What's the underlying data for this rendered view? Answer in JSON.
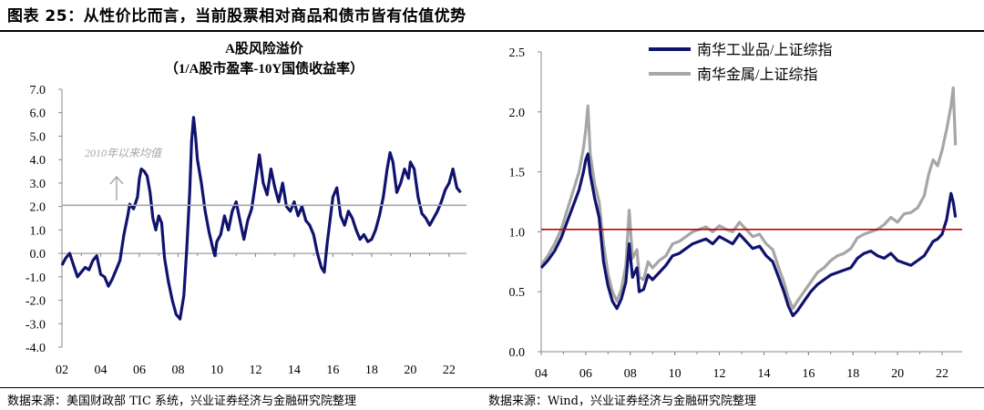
{
  "page": {
    "title": "图表 25：从性价比而言，当前股票相对商品和债市皆有估值优势",
    "source_left": "数据来源：美国财政部 TIC 系统，兴业证券经济与金融研究院整理",
    "source_right": "数据来源：Wind，兴业证券经济与金融研究院整理"
  },
  "chart_data": [
    {
      "type": "line",
      "title": "A股风险溢价",
      "subtitle": "（1/A股市盈率-10Y国债收益率）",
      "xlabel": "",
      "ylabel": "",
      "xlim": [
        2002.0,
        2022.9
      ],
      "ylim": [
        -4.0,
        7.0
      ],
      "yticks": [
        "7.0",
        "6.0",
        "5.0",
        "4.0",
        "3.0",
        "2.0",
        "1.0",
        "0.0",
        "-1.0",
        "-2.0",
        "-3.0",
        "-4.0"
      ],
      "xticks": [
        "02",
        "04",
        "06",
        "08",
        "10",
        "12",
        "14",
        "16",
        "18",
        "20",
        "22"
      ],
      "reference_line": {
        "value": 2.05,
        "label": "2010年以来均值",
        "color": "#a6a6a6"
      },
      "grid": false,
      "series": [
        {
          "color": "#10136e",
          "x": [
            2002.0,
            2002.2,
            2002.4,
            2002.6,
            2002.8,
            2003.0,
            2003.2,
            2003.4,
            2003.6,
            2003.8,
            2004.0,
            2004.2,
            2004.4,
            2004.6,
            2004.8,
            2005.0,
            2005.2,
            2005.4,
            2005.5,
            2005.7,
            2005.9,
            2006.0,
            2006.1,
            2006.25,
            2006.4,
            2006.55,
            2006.7,
            2006.85,
            2007.0,
            2007.15,
            2007.3,
            2007.5,
            2007.7,
            2007.9,
            2008.1,
            2008.3,
            2008.45,
            2008.6,
            2008.7,
            2008.8,
            2008.9,
            2009.0,
            2009.2,
            2009.4,
            2009.6,
            2009.8,
            2009.9,
            2010.0,
            2010.2,
            2010.4,
            2010.6,
            2010.8,
            2011.0,
            2011.2,
            2011.4,
            2011.6,
            2011.8,
            2012.0,
            2012.2,
            2012.4,
            2012.6,
            2012.8,
            2013.0,
            2013.2,
            2013.4,
            2013.6,
            2013.8,
            2014.0,
            2014.2,
            2014.4,
            2014.6,
            2014.8,
            2015.0,
            2015.2,
            2015.4,
            2015.55,
            2015.7,
            2015.85,
            2016.0,
            2016.2,
            2016.4,
            2016.6,
            2016.8,
            2017.0,
            2017.2,
            2017.4,
            2017.6,
            2017.8,
            2018.0,
            2018.2,
            2018.4,
            2018.6,
            2018.8,
            2018.95,
            2019.1,
            2019.3,
            2019.5,
            2019.7,
            2019.9,
            2020.0,
            2020.2,
            2020.4,
            2020.6,
            2020.8,
            2021.0,
            2021.2,
            2021.4,
            2021.6,
            2021.8,
            2022.0,
            2022.2,
            2022.4,
            2022.6
          ],
          "y": [
            -0.5,
            -0.2,
            0.0,
            -0.5,
            -1.0,
            -0.8,
            -0.6,
            -0.7,
            -0.3,
            -0.1,
            -0.9,
            -1.0,
            -1.4,
            -1.1,
            -0.7,
            -0.3,
            0.8,
            1.6,
            2.1,
            1.9,
            2.4,
            3.2,
            3.6,
            3.5,
            3.3,
            2.6,
            1.5,
            1.0,
            1.6,
            1.3,
            -0.2,
            -1.2,
            -2.0,
            -2.6,
            -2.8,
            -1.8,
            0.2,
            2.6,
            4.8,
            5.8,
            5.0,
            4.0,
            3.0,
            1.8,
            0.9,
            0.2,
            -0.1,
            0.5,
            0.8,
            1.6,
            1.0,
            1.8,
            2.2,
            1.4,
            0.6,
            1.4,
            1.9,
            3.0,
            4.2,
            3.0,
            2.5,
            3.6,
            2.8,
            2.2,
            3.0,
            2.0,
            1.8,
            2.2,
            1.6,
            2.0,
            1.4,
            1.2,
            0.8,
            0.0,
            -0.6,
            -0.8,
            0.4,
            1.4,
            2.4,
            2.8,
            1.6,
            1.2,
            1.8,
            1.5,
            1.0,
            0.6,
            0.8,
            0.5,
            0.6,
            1.0,
            1.6,
            2.4,
            3.6,
            4.3,
            3.9,
            2.6,
            3.0,
            3.6,
            3.2,
            3.9,
            3.6,
            2.4,
            1.7,
            1.5,
            1.2,
            1.5,
            1.8,
            2.2,
            2.7,
            3.0,
            3.6,
            2.8,
            2.6
          ]
        }
      ]
    },
    {
      "type": "line",
      "title": "",
      "xlabel": "",
      "ylabel": "",
      "xlim": [
        2004.0,
        2022.9
      ],
      "ylim": [
        0.0,
        2.5
      ],
      "yticks": [
        "2.5",
        "2.0",
        "1.5",
        "1.0",
        "0.5",
        "0.0"
      ],
      "xticks": [
        "04",
        "06",
        "08",
        "10",
        "12",
        "14",
        "16",
        "18",
        "20",
        "22"
      ],
      "reference_line": {
        "value": 1.02,
        "label": "",
        "color": "#c00000"
      },
      "legend": "top-left",
      "grid": false,
      "series": [
        {
          "name": "南华金属/上证综指",
          "color": "#a6a6a6",
          "x": [
            2004.0,
            2004.3,
            2004.6,
            2004.9,
            2005.2,
            2005.5,
            2005.7,
            2005.9,
            2006.0,
            2006.1,
            2006.2,
            2006.4,
            2006.6,
            2006.8,
            2007.0,
            2007.2,
            2007.4,
            2007.6,
            2007.8,
            2007.95,
            2008.1,
            2008.3,
            2008.4,
            2008.6,
            2008.8,
            2009.0,
            2009.3,
            2009.6,
            2009.9,
            2010.2,
            2010.5,
            2010.8,
            2011.1,
            2011.4,
            2011.7,
            2012.0,
            2012.3,
            2012.6,
            2012.9,
            2013.2,
            2013.5,
            2013.8,
            2014.1,
            2014.4,
            2014.7,
            2014.9,
            2015.1,
            2015.3,
            2015.5,
            2015.8,
            2016.1,
            2016.4,
            2016.7,
            2017.0,
            2017.3,
            2017.6,
            2017.9,
            2018.2,
            2018.5,
            2018.8,
            2019.1,
            2019.4,
            2019.7,
            2020.0,
            2020.3,
            2020.6,
            2020.9,
            2021.2,
            2021.4,
            2021.6,
            2021.8,
            2022.0,
            2022.2,
            2022.4,
            2022.5,
            2022.6
          ],
          "y": [
            0.72,
            0.8,
            0.9,
            1.02,
            1.2,
            1.38,
            1.5,
            1.7,
            1.85,
            2.05,
            1.65,
            1.4,
            1.25,
            0.9,
            0.65,
            0.5,
            0.42,
            0.52,
            0.72,
            1.18,
            0.78,
            0.85,
            0.62,
            0.6,
            0.75,
            0.7,
            0.76,
            0.8,
            0.9,
            0.92,
            0.96,
            1.0,
            1.02,
            1.04,
            1.0,
            1.05,
            1.02,
            1.0,
            1.08,
            1.02,
            0.96,
            0.98,
            0.9,
            0.85,
            0.68,
            0.58,
            0.45,
            0.36,
            0.42,
            0.5,
            0.58,
            0.66,
            0.7,
            0.76,
            0.8,
            0.82,
            0.86,
            0.95,
            0.98,
            1.0,
            1.02,
            1.06,
            1.12,
            1.08,
            1.15,
            1.16,
            1.2,
            1.3,
            1.48,
            1.6,
            1.55,
            1.68,
            1.85,
            2.05,
            2.2,
            1.72
          ]
        },
        {
          "name": "南华工业品/上证综指",
          "color": "#10136e",
          "x": [
            2004.0,
            2004.3,
            2004.6,
            2004.9,
            2005.2,
            2005.5,
            2005.7,
            2005.9,
            2006.0,
            2006.1,
            2006.2,
            2006.4,
            2006.6,
            2006.8,
            2007.0,
            2007.2,
            2007.4,
            2007.6,
            2007.8,
            2007.95,
            2008.1,
            2008.3,
            2008.4,
            2008.6,
            2008.8,
            2009.0,
            2009.3,
            2009.6,
            2009.9,
            2010.2,
            2010.5,
            2010.8,
            2011.1,
            2011.4,
            2011.7,
            2012.0,
            2012.3,
            2012.6,
            2012.9,
            2013.2,
            2013.5,
            2013.8,
            2014.1,
            2014.4,
            2014.7,
            2014.9,
            2015.1,
            2015.3,
            2015.5,
            2015.8,
            2016.1,
            2016.4,
            2016.7,
            2017.0,
            2017.3,
            2017.6,
            2017.9,
            2018.2,
            2018.5,
            2018.8,
            2019.1,
            2019.4,
            2019.7,
            2020.0,
            2020.3,
            2020.6,
            2020.9,
            2021.2,
            2021.4,
            2021.6,
            2021.8,
            2022.0,
            2022.2,
            2022.4,
            2022.5,
            2022.6
          ],
          "y": [
            0.7,
            0.76,
            0.84,
            0.95,
            1.1,
            1.25,
            1.35,
            1.5,
            1.6,
            1.65,
            1.48,
            1.28,
            1.12,
            0.75,
            0.55,
            0.42,
            0.36,
            0.44,
            0.58,
            0.9,
            0.62,
            0.7,
            0.5,
            0.52,
            0.64,
            0.6,
            0.66,
            0.72,
            0.8,
            0.82,
            0.86,
            0.9,
            0.92,
            0.94,
            0.9,
            0.96,
            0.93,
            0.9,
            0.98,
            0.92,
            0.86,
            0.88,
            0.8,
            0.75,
            0.6,
            0.5,
            0.38,
            0.3,
            0.34,
            0.42,
            0.5,
            0.56,
            0.6,
            0.64,
            0.66,
            0.68,
            0.7,
            0.78,
            0.82,
            0.84,
            0.8,
            0.78,
            0.82,
            0.76,
            0.74,
            0.72,
            0.76,
            0.8,
            0.86,
            0.92,
            0.94,
            0.98,
            1.1,
            1.32,
            1.25,
            1.12
          ]
        }
      ]
    }
  ]
}
